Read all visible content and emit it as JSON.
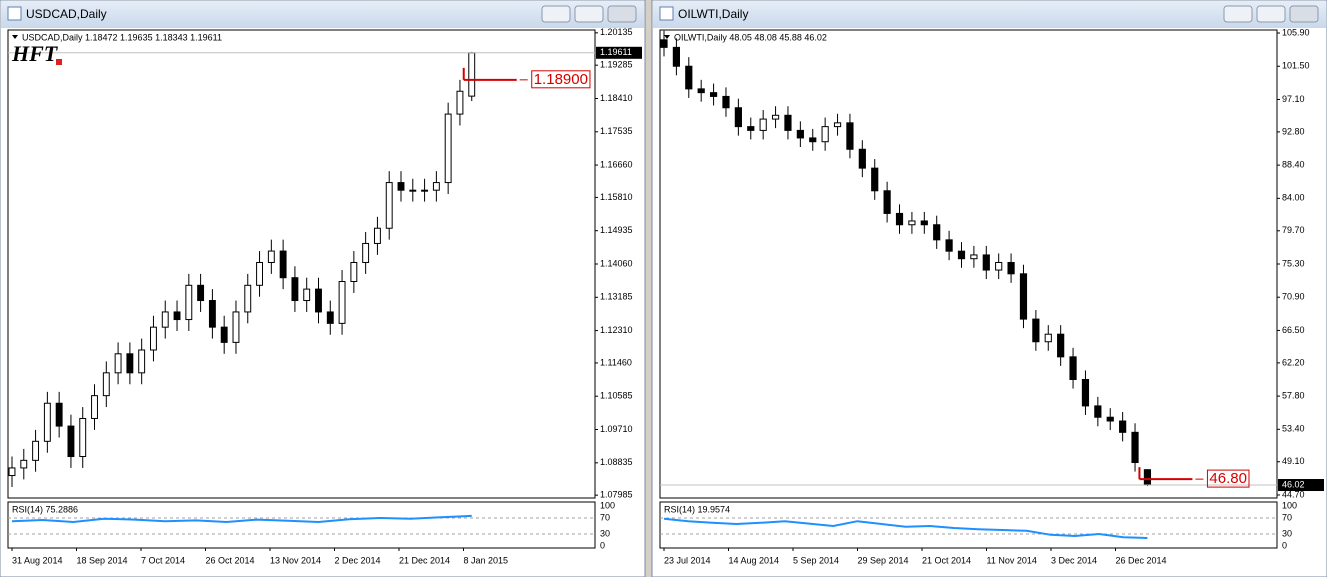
{
  "chart_data": [
    {
      "type": "candlestick",
      "window_title": "USDCAD,Daily",
      "header": "USDCAD,Daily  1.18472 1.19635 1.18343 1.19611",
      "logo": "HFT",
      "ylim": [
        1.0791,
        1.2021
      ],
      "yticks": [
        {
          "value": 1.20135,
          "label": "1.20135"
        },
        {
          "value": 1.19285,
          "label": "1.19285"
        },
        {
          "value": 1.1841,
          "label": "1.18410"
        },
        {
          "value": 1.17535,
          "label": "1.17535"
        },
        {
          "value": 1.1666,
          "label": "1.16660"
        },
        {
          "value": 1.1581,
          "label": "1.15810"
        },
        {
          "value": 1.14935,
          "label": "1.14935"
        },
        {
          "value": 1.1406,
          "label": "1.14060"
        },
        {
          "value": 1.13185,
          "label": "1.13185"
        },
        {
          "value": 1.1231,
          "label": "1.12310"
        },
        {
          "value": 1.1146,
          "label": "1.11460"
        },
        {
          "value": 1.10585,
          "label": "1.10585"
        },
        {
          "value": 1.0971,
          "label": "1.09710"
        },
        {
          "value": 1.08835,
          "label": "1.08835"
        },
        {
          "value": 1.07985,
          "label": "1.07985"
        }
      ],
      "open": [
        1.085,
        1.087,
        1.089,
        1.094,
        1.104,
        1.098,
        1.09,
        1.1,
        1.106,
        1.112,
        1.117,
        1.112,
        1.118,
        1.124,
        1.128,
        1.126,
        1.135,
        1.131,
        1.124,
        1.12,
        1.128,
        1.135,
        1.141,
        1.144,
        1.137,
        1.131,
        1.134,
        1.128,
        1.125,
        1.136,
        1.141,
        1.146,
        1.15,
        1.162,
        1.16,
        1.16,
        1.16,
        1.162,
        1.18,
        1.18472
      ],
      "high": [
        1.09,
        1.092,
        1.097,
        1.107,
        1.107,
        1.101,
        1.103,
        1.109,
        1.115,
        1.12,
        1.12,
        1.121,
        1.127,
        1.131,
        1.131,
        1.138,
        1.138,
        1.134,
        1.127,
        1.131,
        1.138,
        1.144,
        1.147,
        1.147,
        1.14,
        1.137,
        1.137,
        1.131,
        1.139,
        1.144,
        1.149,
        1.153,
        1.165,
        1.165,
        1.163,
        1.163,
        1.165,
        1.183,
        1.189,
        1.19635
      ],
      "low": [
        1.082,
        1.084,
        1.086,
        1.091,
        1.095,
        1.087,
        1.087,
        1.097,
        1.103,
        1.109,
        1.109,
        1.109,
        1.115,
        1.121,
        1.123,
        1.123,
        1.128,
        1.121,
        1.117,
        1.117,
        1.125,
        1.132,
        1.138,
        1.134,
        1.128,
        1.128,
        1.125,
        1.122,
        1.122,
        1.133,
        1.138,
        1.143,
        1.147,
        1.157,
        1.157,
        1.157,
        1.157,
        1.159,
        1.177,
        1.18343
      ],
      "close": [
        1.087,
        1.089,
        1.094,
        1.104,
        1.098,
        1.09,
        1.1,
        1.106,
        1.112,
        1.117,
        1.112,
        1.118,
        1.124,
        1.128,
        1.126,
        1.135,
        1.131,
        1.124,
        1.12,
        1.128,
        1.135,
        1.141,
        1.144,
        1.137,
        1.131,
        1.134,
        1.128,
        1.125,
        1.136,
        1.141,
        1.146,
        1.15,
        1.162,
        1.16,
        1.16,
        1.16,
        1.162,
        1.18,
        1.186,
        1.19611
      ],
      "current_price": {
        "value": 1.19611,
        "label": "1.19611"
      },
      "level": {
        "value": 1.189,
        "label": "1.18900",
        "color": "#d40000"
      },
      "x_labels": [
        "31 Aug 2014",
        "18 Sep 2014",
        "7 Oct 2014",
        "26 Oct 2014",
        "13 Nov 2014",
        "2 Dec 2014",
        "21 Dec 2014",
        "8 Jan 2015"
      ],
      "rsi": {
        "label": "RSI(14) 75.2886",
        "color": "#1e90ff",
        "ylim": [
          0,
          100
        ],
        "yticks": [
          100,
          70,
          30,
          0
        ],
        "values": [
          62,
          65,
          60,
          68,
          66,
          62,
          64,
          60,
          66,
          63,
          60,
          67,
          70,
          68,
          72,
          75.2886
        ]
      }
    },
    {
      "type": "candlestick",
      "window_title": "OILWTI,Daily",
      "header": "OILWTI,Daily  48.05 48.08 45.88 46.02",
      "ylim": [
        44.3,
        106.3
      ],
      "yticks": [
        {
          "value": 105.9,
          "label": "105.90"
        },
        {
          "value": 101.5,
          "label": "101.50"
        },
        {
          "value": 97.1,
          "label": "97.10"
        },
        {
          "value": 92.8,
          "label": "92.80"
        },
        {
          "value": 88.4,
          "label": "88.40"
        },
        {
          "value": 84,
          "label": "84.00"
        },
        {
          "value": 79.7,
          "label": "79.70"
        },
        {
          "value": 75.3,
          "label": "75.30"
        },
        {
          "value": 70.9,
          "label": "70.90"
        },
        {
          "value": 66.5,
          "label": "66.50"
        },
        {
          "value": 62.2,
          "label": "62.20"
        },
        {
          "value": 57.8,
          "label": "57.80"
        },
        {
          "value": 53.4,
          "label": "53.40"
        },
        {
          "value": 49.1,
          "label": "49.10"
        },
        {
          "value": 44.7,
          "label": "44.70"
        }
      ],
      "open": [
        105.0,
        104.0,
        101.5,
        98.5,
        98.0,
        97.5,
        96.0,
        93.5,
        93.0,
        94.5,
        95.0,
        93.0,
        92.0,
        91.5,
        93.5,
        94.0,
        90.5,
        88.0,
        85.0,
        82.0,
        80.5,
        81.0,
        80.5,
        78.5,
        77.0,
        76.0,
        76.5,
        74.5,
        75.5,
        74.0,
        68.0,
        65.0,
        66.0,
        63.0,
        60.0,
        56.5,
        55.0,
        54.5,
        53.0,
        48.05
      ],
      "high": [
        106.2,
        105.2,
        102.7,
        99.7,
        99.2,
        98.7,
        97.2,
        94.7,
        95.7,
        96.2,
        96.2,
        94.2,
        93.2,
        94.7,
        95.2,
        95.2,
        91.7,
        89.2,
        86.2,
        83.2,
        82.2,
        82.2,
        81.7,
        79.7,
        78.2,
        77.7,
        77.7,
        76.7,
        76.7,
        75.2,
        69.2,
        67.2,
        67.2,
        64.2,
        61.2,
        57.7,
        56.2,
        55.7,
        54.2,
        48.08
      ],
      "low": [
        102.8,
        100.3,
        97.3,
        96.8,
        96.3,
        94.8,
        92.3,
        91.8,
        91.8,
        93.3,
        91.8,
        90.8,
        90.3,
        90.3,
        92.3,
        89.3,
        86.8,
        83.8,
        80.8,
        79.3,
        79.3,
        79.3,
        77.3,
        75.8,
        74.8,
        74.8,
        73.3,
        73.3,
        72.8,
        66.8,
        63.8,
        63.8,
        61.8,
        58.8,
        55.3,
        53.8,
        53.3,
        51.8,
        47.8,
        45.88
      ],
      "close": [
        104.0,
        101.5,
        98.5,
        98.0,
        97.5,
        96.0,
        93.5,
        93.0,
        94.5,
        95.0,
        93.0,
        92.0,
        91.5,
        93.5,
        94.0,
        90.5,
        88.0,
        85.0,
        82.0,
        80.5,
        81.0,
        80.5,
        78.5,
        77.0,
        76.0,
        76.5,
        74.5,
        75.5,
        74.0,
        68.0,
        65.0,
        66.0,
        63.0,
        60.0,
        56.5,
        55.0,
        54.5,
        53.0,
        49.0,
        46.02
      ],
      "current_price": 46.02,
      "level": {
        "value": 46.8,
        "label": "46.80",
        "color": "#d40000"
      },
      "x_labels": [
        "23 Jul 2014",
        "14 Aug 2014",
        "5 Sep 2014",
        "29 Sep 2014",
        "21 Oct 2014",
        "11 Nov 2014",
        "3 Dec 2014",
        "26 Dec 2014"
      ],
      "rsi": {
        "label": "RSI(14) 19.9574",
        "color": "#1e90ff",
        "ylim": [
          0,
          100
        ],
        "yticks": [
          100,
          70,
          30,
          0
        ],
        "values": [
          68,
          62,
          58,
          55,
          58,
          62,
          56,
          50,
          62,
          55,
          48,
          50,
          45,
          42,
          40,
          38,
          28,
          25,
          30,
          22,
          19.9574
        ]
      }
    }
  ]
}
